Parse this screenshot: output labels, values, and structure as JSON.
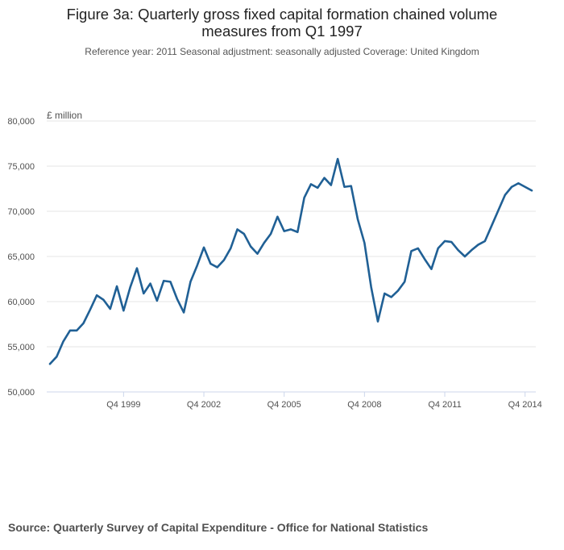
{
  "title": "Figure 3a: Quarterly gross fixed capital formation chained volume measures from Q1 1997",
  "subtitle": "Reference year: 2011 Seasonal adjustment: seasonally adjusted Coverage: United Kingdom",
  "source": "Source: Quarterly Survey of Capital Expenditure - Office for National Statistics",
  "colors": {
    "line": "#206095",
    "grid": "#e6e6e6",
    "axis": "#ccd6eb"
  },
  "chart_data": {
    "type": "line",
    "title": "Figure 3a: Quarterly gross fixed capital formation chained volume measures from Q1 1997",
    "ylabel": "£ million",
    "xlabel": "",
    "ylim": [
      50000,
      80000
    ],
    "y_ticks": [
      "80,000",
      "75,000",
      "70,000",
      "65,000",
      "60,000",
      "55,000",
      "50,000"
    ],
    "x_tick_labels": [
      "Q4 1999",
      "Q4 2002",
      "Q4 2005",
      "Q4 2008",
      "Q4 2011",
      "Q4 2014"
    ],
    "grid": true,
    "legend": "none",
    "series": [
      {
        "x": [
          "Q1 1997",
          "Q2 1997",
          "Q3 1997",
          "Q4 1997",
          "Q1 1998",
          "Q2 1998",
          "Q3 1998",
          "Q4 1998",
          "Q1 1999",
          "Q2 1999",
          "Q3 1999",
          "Q4 1999",
          "Q1 2000",
          "Q2 2000",
          "Q3 2000",
          "Q4 2000",
          "Q1 2001",
          "Q2 2001",
          "Q3 2001",
          "Q4 2001",
          "Q1 2002",
          "Q2 2002",
          "Q3 2002",
          "Q4 2002",
          "Q1 2003",
          "Q2 2003",
          "Q3 2003",
          "Q4 2003",
          "Q1 2004",
          "Q2 2004",
          "Q3 2004",
          "Q4 2004",
          "Q1 2005",
          "Q2 2005",
          "Q3 2005",
          "Q4 2005",
          "Q1 2006",
          "Q2 2006",
          "Q3 2006",
          "Q4 2006",
          "Q1 2007",
          "Q2 2007",
          "Q3 2007",
          "Q4 2007",
          "Q1 2008",
          "Q2 2008",
          "Q3 2008",
          "Q4 2008",
          "Q1 2009",
          "Q2 2009",
          "Q3 2009",
          "Q4 2009",
          "Q1 2010",
          "Q2 2010",
          "Q3 2010",
          "Q4 2010",
          "Q1 2011",
          "Q2 2011",
          "Q3 2011",
          "Q4 2011",
          "Q1 2012",
          "Q2 2012",
          "Q3 2012",
          "Q4 2012",
          "Q1 2013",
          "Q2 2013",
          "Q3 2013",
          "Q4 2013",
          "Q1 2014",
          "Q2 2014",
          "Q3 2014",
          "Q4 2014",
          "Q1 2015"
        ],
        "values": [
          53100,
          53900,
          55600,
          56800,
          56800,
          57600,
          59100,
          60700,
          60200,
          59200,
          61700,
          59000,
          61600,
          63700,
          60900,
          62000,
          60100,
          62300,
          62200,
          60300,
          58800,
          62200,
          64000,
          66000,
          64200,
          63800,
          64600,
          65900,
          68000,
          67500,
          66100,
          65300,
          66500,
          67500,
          69400,
          67800,
          68000,
          67700,
          71500,
          73000,
          72600,
          73700,
          72900,
          75800,
          72700,
          72800,
          69100,
          66500,
          61600,
          57800,
          60900,
          60500,
          61200,
          62200,
          65600,
          65900,
          64700,
          63600,
          65900,
          66700,
          66600,
          65700,
          65000,
          65700,
          66300,
          66700,
          68400,
          70100,
          71800,
          72700,
          73100,
          72700,
          72300
        ]
      }
    ]
  }
}
